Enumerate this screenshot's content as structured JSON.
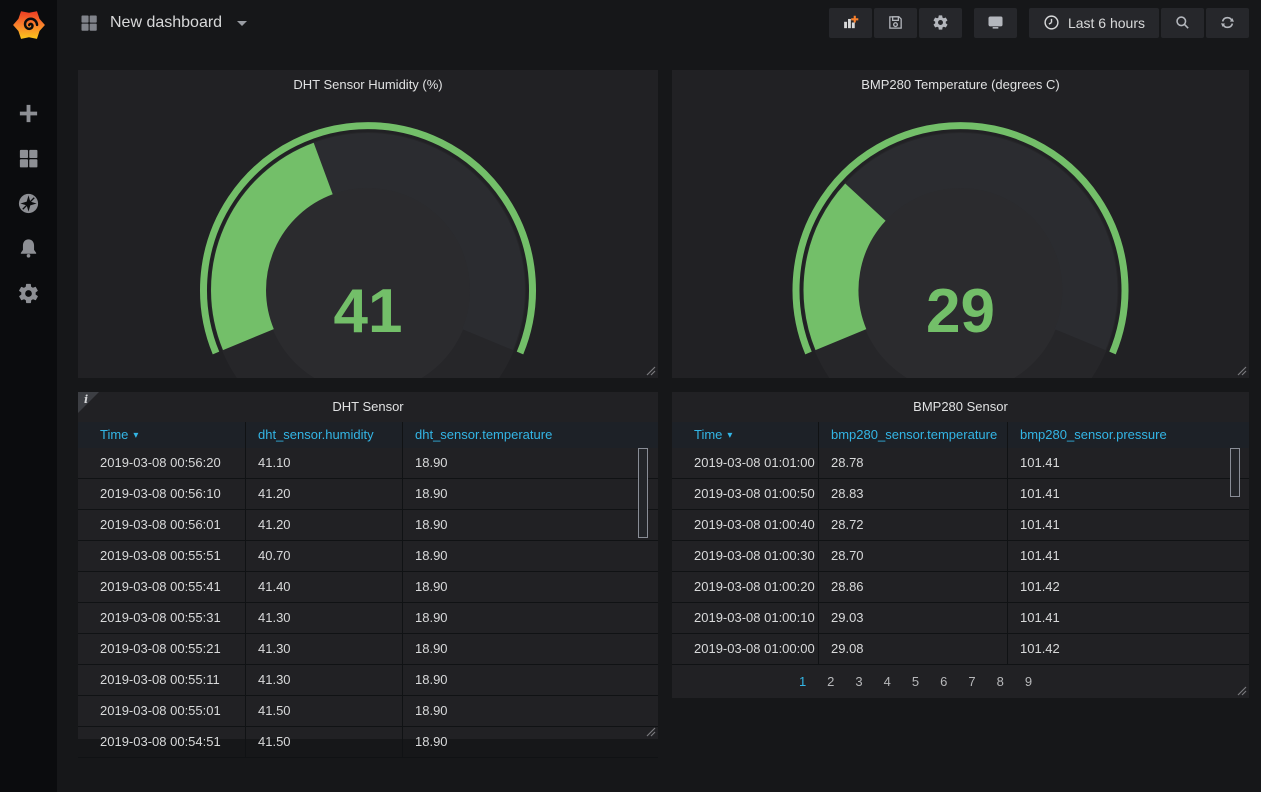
{
  "colors": {
    "gauge_green": "#73bf69",
    "gauge_rest": "#2b2c30",
    "table_header_blue": "#33b5e5",
    "brand_orange": "#f9802c"
  },
  "icons": {
    "sort_caret": "▾",
    "info_glyph": "i"
  },
  "sidebar": {
    "items": [
      "create",
      "dashboards",
      "explore",
      "alerting",
      "configuration"
    ]
  },
  "navbar": {
    "title": "New dashboard",
    "time_label": "Last 6 hours"
  },
  "panels": {
    "gauge1": {
      "title": "DHT Sensor Humidity (%)",
      "value": 41,
      "min": 0,
      "max": 100,
      "color": "#73bf69"
    },
    "gauge2": {
      "title": "BMP280 Temperature (degrees C)",
      "value": 29,
      "min": 0,
      "max": 100,
      "color": "#73bf69"
    },
    "table1": {
      "title": "DHT Sensor",
      "columns": [
        "Time",
        "dht_sensor.humidity",
        "dht_sensor.temperature"
      ],
      "sorted_column": "Time",
      "sort_direction": "desc",
      "rows": [
        [
          "2019-03-08 00:56:20",
          "41.10",
          "18.90"
        ],
        [
          "2019-03-08 00:56:10",
          "41.20",
          "18.90"
        ],
        [
          "2019-03-08 00:56:01",
          "41.20",
          "18.90"
        ],
        [
          "2019-03-08 00:55:51",
          "40.70",
          "18.90"
        ],
        [
          "2019-03-08 00:55:41",
          "41.40",
          "18.90"
        ],
        [
          "2019-03-08 00:55:31",
          "41.30",
          "18.90"
        ],
        [
          "2019-03-08 00:55:21",
          "41.30",
          "18.90"
        ],
        [
          "2019-03-08 00:55:11",
          "41.30",
          "18.90"
        ],
        [
          "2019-03-08 00:55:01",
          "41.50",
          "18.90"
        ],
        [
          "2019-03-08 00:54:51",
          "41.50",
          "18.90"
        ]
      ]
    },
    "table2": {
      "title": "BMP280 Sensor",
      "columns": [
        "Time",
        "bmp280_sensor.temperature",
        "bmp280_sensor.pressure"
      ],
      "sorted_column": "Time",
      "sort_direction": "desc",
      "rows": [
        [
          "2019-03-08 01:01:00",
          "28.78",
          "101.41"
        ],
        [
          "2019-03-08 01:00:50",
          "28.83",
          "101.41"
        ],
        [
          "2019-03-08 01:00:40",
          "28.72",
          "101.41"
        ],
        [
          "2019-03-08 01:00:30",
          "28.70",
          "101.41"
        ],
        [
          "2019-03-08 01:00:20",
          "28.86",
          "101.42"
        ],
        [
          "2019-03-08 01:00:10",
          "29.03",
          "101.41"
        ],
        [
          "2019-03-08 01:00:00",
          "29.08",
          "101.42"
        ]
      ],
      "pagination": [
        "1",
        "2",
        "3",
        "4",
        "5",
        "6",
        "7",
        "8",
        "9"
      ],
      "current_page": "1"
    }
  }
}
